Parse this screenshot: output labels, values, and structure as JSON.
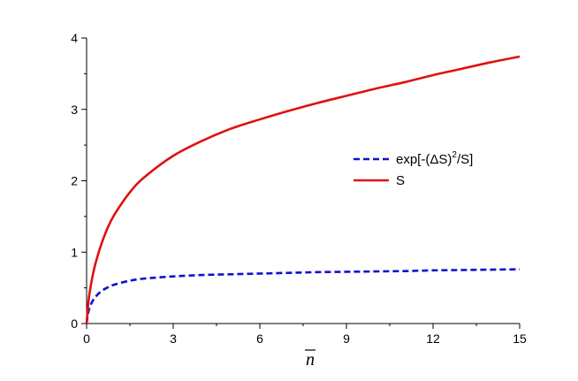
{
  "chart_data": {
    "type": "line",
    "title": "",
    "xlabel": "n",
    "xlabel_overbar": true,
    "ylabel": "",
    "xlim": [
      0,
      15
    ],
    "ylim": [
      0,
      4
    ],
    "x_ticks": [
      0,
      3,
      6,
      9,
      12,
      15
    ],
    "x_tick_labels": [
      "0",
      "3",
      "6",
      "9",
      "12",
      "15"
    ],
    "y_ticks": [
      0,
      1,
      2,
      3,
      4
    ],
    "y_tick_labels": [
      "0",
      "1",
      "2",
      "3",
      "4"
    ],
    "grid": false,
    "legend_position": "center-right",
    "series": [
      {
        "label_parts": [
          "exp[-(",
          "Δ",
          "S)",
          "2",
          "/S]"
        ],
        "color": "#1010d0",
        "style": "dashed",
        "x": [
          0,
          0.05,
          0.1,
          0.2,
          0.3,
          0.5,
          0.75,
          1,
          1.5,
          2,
          3,
          4,
          5,
          6,
          7,
          8,
          9,
          10,
          11,
          12,
          13,
          14,
          15
        ],
        "y": [
          0,
          0.14,
          0.22,
          0.31,
          0.37,
          0.45,
          0.51,
          0.55,
          0.6,
          0.63,
          0.66,
          0.68,
          0.69,
          0.7,
          0.71,
          0.72,
          0.725,
          0.73,
          0.735,
          0.745,
          0.75,
          0.755,
          0.76
        ]
      },
      {
        "label_parts": [
          "S"
        ],
        "color": "#e01010",
        "style": "solid",
        "x": [
          0,
          0.05,
          0.1,
          0.2,
          0.3,
          0.5,
          0.75,
          1,
          1.5,
          2,
          3,
          4,
          5,
          6,
          7,
          8,
          9,
          10,
          11,
          12,
          13,
          14,
          15
        ],
        "y": [
          0,
          0.25,
          0.42,
          0.65,
          0.83,
          1.1,
          1.36,
          1.55,
          1.84,
          2.05,
          2.35,
          2.56,
          2.73,
          2.86,
          2.98,
          3.09,
          3.19,
          3.29,
          3.38,
          3.48,
          3.57,
          3.66,
          3.74
        ]
      }
    ]
  }
}
